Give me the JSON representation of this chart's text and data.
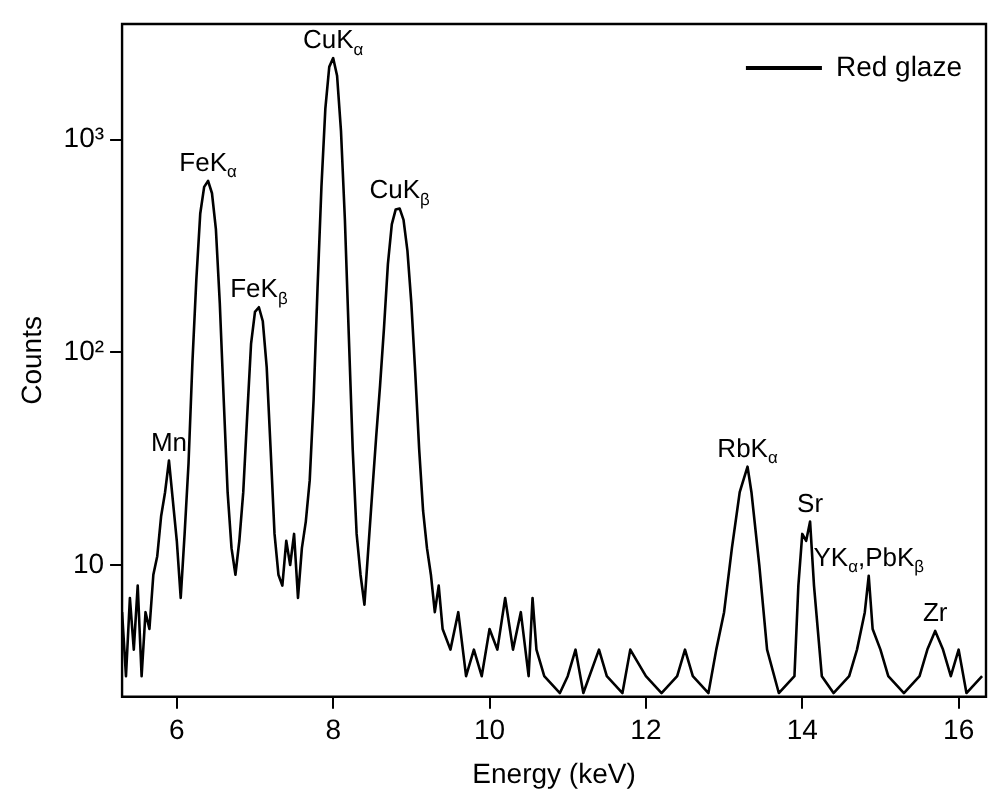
{
  "chart_data": {
    "type": "line",
    "xlabel": "Energy (keV)",
    "ylabel": "Counts",
    "log": "y",
    "xlim": [
      5.3,
      16.35
    ],
    "xticks": [
      6,
      8,
      10,
      12,
      14,
      16
    ],
    "ylim": [
      2.4,
      3500
    ],
    "yticks": [
      10,
      {
        "value": 100,
        "label": "10²"
      },
      {
        "value": 1000,
        "label": "10³"
      }
    ],
    "grid": false,
    "legend": "top right",
    "marker": "none",
    "line_style": "solid",
    "series": [
      {
        "name": "Red glaze",
        "color": "#000000",
        "x": [
          5.3,
          5.35,
          5.4,
          5.45,
          5.5,
          5.55,
          5.6,
          5.65,
          5.7,
          5.75,
          5.8,
          5.85,
          5.9,
          5.95,
          6.0,
          6.05,
          6.1,
          6.15,
          6.2,
          6.25,
          6.3,
          6.35,
          6.4,
          6.45,
          6.5,
          6.55,
          6.6,
          6.65,
          6.7,
          6.75,
          6.8,
          6.85,
          6.9,
          6.95,
          7.0,
          7.05,
          7.1,
          7.15,
          7.2,
          7.25,
          7.3,
          7.35,
          7.4,
          7.45,
          7.5,
          7.55,
          7.6,
          7.65,
          7.7,
          7.75,
          7.8,
          7.85,
          7.9,
          7.95,
          8.0,
          8.05,
          8.1,
          8.15,
          8.2,
          8.25,
          8.3,
          8.35,
          8.4,
          8.45,
          8.5,
          8.55,
          8.6,
          8.65,
          8.7,
          8.75,
          8.8,
          8.85,
          8.9,
          8.95,
          9.0,
          9.05,
          9.1,
          9.15,
          9.2,
          9.25,
          9.3,
          9.35,
          9.4,
          9.5,
          9.6,
          9.7,
          9.8,
          9.9,
          10.0,
          10.1,
          10.2,
          10.3,
          10.4,
          10.5,
          10.55,
          10.6,
          10.7,
          10.9,
          11.0,
          11.1,
          11.2,
          11.4,
          11.5,
          11.7,
          11.8,
          12.0,
          12.2,
          12.4,
          12.5,
          12.6,
          12.8,
          12.9,
          13.0,
          13.1,
          13.2,
          13.3,
          13.35,
          13.45,
          13.55,
          13.7,
          13.9,
          13.95,
          14.0,
          14.05,
          14.1,
          14.15,
          14.25,
          14.4,
          14.6,
          14.7,
          14.8,
          14.85,
          14.9,
          15.0,
          15.1,
          15.3,
          15.5,
          15.6,
          15.7,
          15.8,
          15.9,
          16.0,
          16.1,
          16.3
        ],
        "values": [
          6,
          3,
          7,
          4,
          8,
          3,
          6,
          5,
          9,
          11,
          17,
          22,
          31,
          20,
          13,
          7,
          14,
          30,
          90,
          220,
          450,
          600,
          640,
          560,
          380,
          170,
          60,
          22,
          12,
          9,
          13,
          22,
          50,
          110,
          155,
          163,
          140,
          85,
          35,
          14,
          9,
          8,
          13,
          10,
          14,
          7,
          12,
          16,
          25,
          60,
          200,
          600,
          1400,
          2200,
          2420,
          2000,
          1100,
          420,
          120,
          35,
          14,
          9,
          6.5,
          12,
          22,
          40,
          70,
          130,
          260,
          400,
          470,
          475,
          420,
          300,
          170,
          80,
          35,
          18,
          12,
          9,
          6,
          8,
          5,
          4,
          6,
          3,
          4,
          3,
          5,
          4,
          7,
          4,
          6,
          3,
          7,
          4,
          3,
          2.5,
          3,
          4,
          2.5,
          4,
          3,
          2.5,
          4,
          3,
          2.5,
          3,
          4,
          3,
          2.5,
          4,
          6,
          12,
          22,
          29,
          22,
          10,
          4,
          2.5,
          3,
          8,
          14,
          13,
          16,
          8,
          3,
          2.5,
          3,
          4,
          6,
          8.9,
          5,
          4,
          3,
          2.5,
          3,
          4,
          4.9,
          4,
          3,
          4,
          2.5,
          3
        ]
      }
    ],
    "annotations": [
      {
        "text": "Mn",
        "x": 5.9,
        "y": 31
      },
      {
        "text": "FeK$_{α}$",
        "x": 6.4,
        "y": 640
      },
      {
        "text": "FeK$_{β}$",
        "x": 7.05,
        "y": 163
      },
      {
        "text": "CuK$_{α}$",
        "x": 8.0,
        "y": 2420
      },
      {
        "text": "CuK$_{β}$",
        "x": 8.85,
        "y": 475
      },
      {
        "text": "RbK$_{α}$",
        "x": 13.3,
        "y": 29
      },
      {
        "text": "Sr",
        "x": 14.1,
        "y": 16
      },
      {
        "text": "YK$_{α}$,PbK$_{β}$",
        "x": 14.85,
        "y": 8.9
      },
      {
        "text": "Zr",
        "x": 15.7,
        "y": 4.9
      }
    ]
  }
}
